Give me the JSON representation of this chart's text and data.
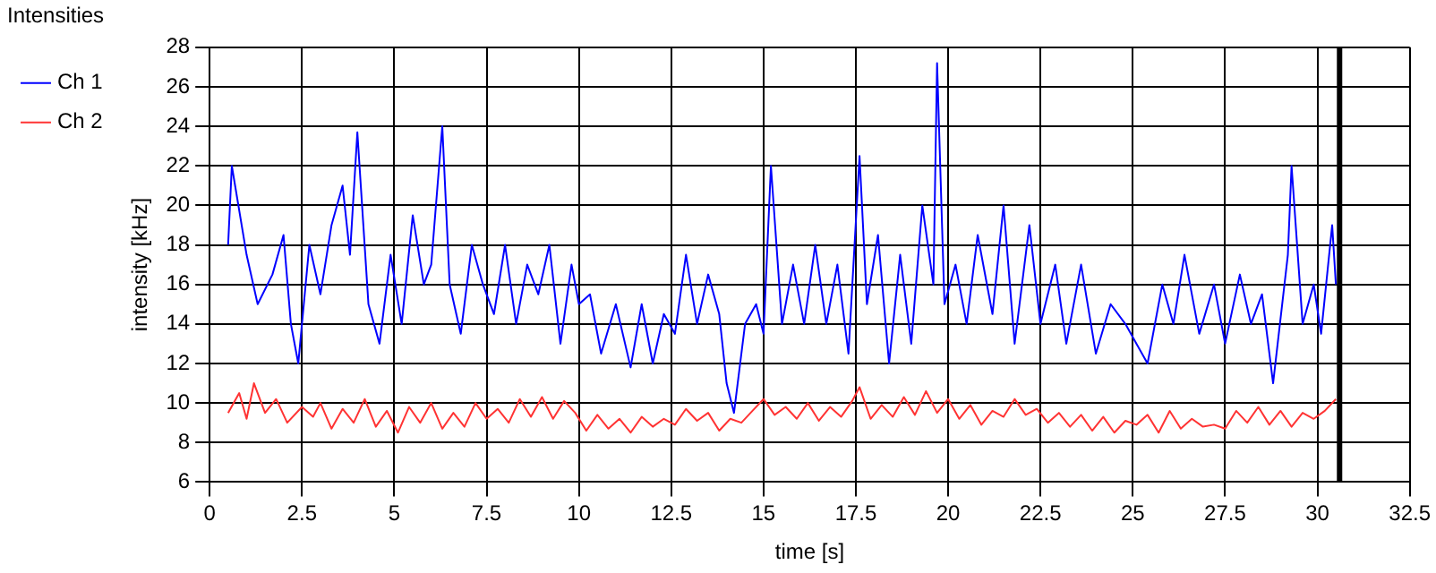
{
  "chart_data": {
    "type": "line",
    "title": "Intensities",
    "xlabel": "time [s]",
    "ylabel": "intensity [kHz]",
    "xlim": [
      0,
      32.5
    ],
    "xticks": [
      0,
      2.5,
      5,
      7.5,
      10,
      12.5,
      15,
      17.5,
      20,
      22.5,
      25,
      27.5,
      30,
      32.5
    ],
    "ylim": [
      6,
      28
    ],
    "yticks": [
      6,
      8,
      10,
      12,
      14,
      16,
      18,
      20,
      22,
      24,
      26,
      28
    ],
    "grid": true,
    "legend": "top left",
    "marker": "none",
    "line_style": "solid",
    "ref_lines": [
      {
        "axis": "x",
        "value": 30.6,
        "color": "#000000"
      }
    ],
    "series": [
      {
        "name": "Ch 1",
        "color": "#0000ff",
        "x": [
          0.5,
          0.6,
          1.0,
          1.3,
          1.7,
          2.0,
          2.2,
          2.4,
          2.7,
          3.0,
          3.3,
          3.6,
          3.8,
          4.0,
          4.3,
          4.6,
          4.9,
          5.2,
          5.5,
          5.8,
          6.0,
          6.3,
          6.5,
          6.8,
          7.1,
          7.4,
          7.7,
          8.0,
          8.3,
          8.6,
          8.9,
          9.2,
          9.5,
          9.8,
          10.0,
          10.3,
          10.6,
          11.0,
          11.4,
          11.7,
          12.0,
          12.3,
          12.6,
          12.9,
          13.2,
          13.5,
          13.8,
          14.0,
          14.2,
          14.5,
          14.8,
          15.0,
          15.2,
          15.5,
          15.8,
          16.1,
          16.4,
          16.7,
          17.0,
          17.3,
          17.6,
          17.8,
          18.1,
          18.4,
          18.7,
          19.0,
          19.3,
          19.6,
          19.7,
          19.9,
          20.2,
          20.5,
          20.8,
          21.2,
          21.5,
          21.8,
          22.2,
          22.5,
          22.9,
          23.2,
          23.6,
          24.0,
          24.4,
          24.8,
          25.1,
          25.4,
          25.8,
          26.1,
          26.4,
          26.8,
          27.2,
          27.5,
          27.9,
          28.2,
          28.5,
          28.8,
          29.2,
          29.3,
          29.6,
          29.9,
          30.1,
          30.4,
          30.5
        ],
        "values": [
          18,
          22,
          17.5,
          15,
          16.5,
          18.5,
          14,
          12,
          18,
          15.5,
          19,
          21,
          17.5,
          23.7,
          15,
          13,
          17.5,
          14,
          19.5,
          16,
          17,
          24,
          16,
          13.5,
          18,
          16,
          14.5,
          18,
          14,
          17,
          15.5,
          18,
          13,
          17,
          15,
          15.5,
          12.5,
          15,
          11.8,
          15,
          12,
          14.5,
          13.5,
          17.5,
          14,
          16.5,
          14.5,
          11,
          9.5,
          14,
          15,
          13.5,
          22,
          14,
          17,
          14,
          18,
          14,
          17,
          12.5,
          22.5,
          15,
          18.5,
          12,
          17.5,
          13,
          20,
          16,
          27.2,
          15,
          17,
          14,
          18.5,
          14.5,
          20,
          13,
          19,
          14,
          17,
          13,
          17,
          12.5,
          15,
          14,
          13,
          12,
          16,
          14,
          17.5,
          13.5,
          16,
          13,
          16.5,
          14,
          15.5,
          11,
          17.5,
          22,
          14,
          16,
          13.5,
          19,
          16
        ]
      },
      {
        "name": "Ch 2",
        "color": "#ff3333",
        "x": [
          0.5,
          0.8,
          1.0,
          1.2,
          1.5,
          1.8,
          2.1,
          2.5,
          2.8,
          3.0,
          3.3,
          3.6,
          3.9,
          4.2,
          4.5,
          4.8,
          5.1,
          5.4,
          5.7,
          6.0,
          6.3,
          6.6,
          6.9,
          7.2,
          7.5,
          7.8,
          8.1,
          8.4,
          8.7,
          9.0,
          9.3,
          9.6,
          9.9,
          10.2,
          10.5,
          10.8,
          11.1,
          11.4,
          11.7,
          12.0,
          12.3,
          12.6,
          12.9,
          13.2,
          13.5,
          13.8,
          14.1,
          14.4,
          14.7,
          15.0,
          15.3,
          15.6,
          15.9,
          16.2,
          16.5,
          16.8,
          17.1,
          17.4,
          17.6,
          17.9,
          18.2,
          18.5,
          18.8,
          19.1,
          19.4,
          19.7,
          20.0,
          20.3,
          20.6,
          20.9,
          21.2,
          21.5,
          21.8,
          22.1,
          22.4,
          22.7,
          23.0,
          23.3,
          23.6,
          23.9,
          24.2,
          24.5,
          24.8,
          25.1,
          25.4,
          25.7,
          26.0,
          26.3,
          26.6,
          26.9,
          27.2,
          27.5,
          27.8,
          28.1,
          28.4,
          28.7,
          29.0,
          29.3,
          29.6,
          29.9,
          30.2,
          30.5
        ],
        "values": [
          9.5,
          10.5,
          9.2,
          11,
          9.5,
          10.2,
          9,
          9.8,
          9.3,
          10,
          8.7,
          9.7,
          9,
          10.2,
          8.8,
          9.6,
          8.5,
          9.8,
          9,
          10,
          8.7,
          9.5,
          8.8,
          10,
          9.2,
          9.7,
          9,
          10.2,
          9.3,
          10.3,
          9.2,
          10.1,
          9.5,
          8.6,
          9.4,
          8.7,
          9.2,
          8.5,
          9.3,
          8.8,
          9.2,
          8.9,
          9.7,
          9.1,
          9.5,
          8.6,
          9.2,
          9,
          9.6,
          10.2,
          9.4,
          9.8,
          9.2,
          10,
          9.1,
          9.8,
          9.3,
          10.1,
          10.8,
          9.2,
          9.9,
          9.3,
          10.3,
          9.4,
          10.6,
          9.5,
          10.2,
          9.2,
          9.9,
          8.9,
          9.6,
          9.3,
          10.2,
          9.4,
          9.7,
          9,
          9.5,
          8.8,
          9.4,
          8.6,
          9.3,
          8.5,
          9.1,
          8.9,
          9.4,
          8.5,
          9.6,
          8.7,
          9.2,
          8.8,
          8.9,
          8.7,
          9.6,
          9,
          9.8,
          8.9,
          9.6,
          8.8,
          9.5,
          9.2,
          9.6,
          10.2
        ]
      }
    ]
  }
}
